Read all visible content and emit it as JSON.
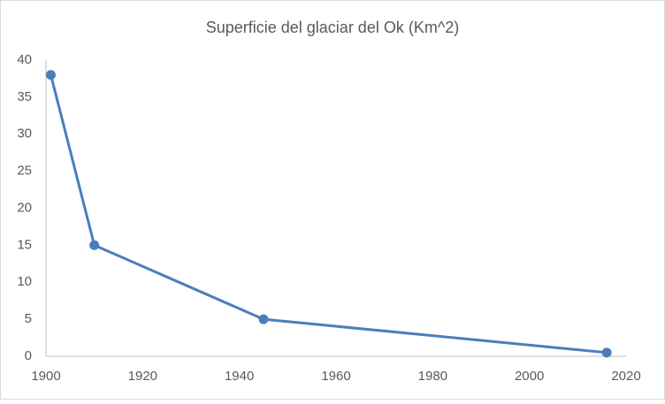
{
  "chart_data": {
    "type": "line",
    "title": "Superficie del glaciar del Ok (Km^2)",
    "x": [
      1901,
      1910,
      1945,
      2016
    ],
    "values": [
      38,
      15,
      5,
      0.5
    ],
    "color": "#4a7ebb",
    "xlim": [
      1900,
      2020
    ],
    "xticks": [
      1900,
      1920,
      1940,
      1960,
      1980,
      2000,
      2020
    ],
    "ylim": [
      0,
      40
    ],
    "yticks": [
      0,
      5,
      10,
      15,
      20,
      25,
      30,
      35,
      40
    ],
    "markers": true
  }
}
